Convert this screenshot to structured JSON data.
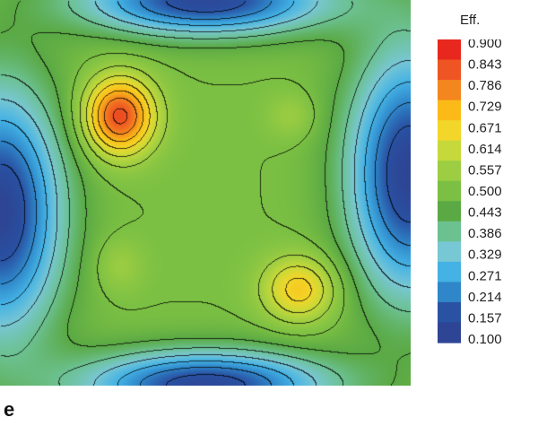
{
  "panel_label": "e",
  "chart_data": {
    "type": "heatmap",
    "title": "",
    "xlabel": "",
    "ylabel": "",
    "legend_title": "Eff.",
    "legend_position": "right",
    "contour_lines": true,
    "color_range": [
      0.1,
      0.9
    ],
    "colorbar_ticks": [
      "0.900",
      "0.843",
      "0.786",
      "0.729",
      "0.671",
      "0.614",
      "0.557",
      "0.500",
      "0.443",
      "0.386",
      "0.329",
      "0.271",
      "0.214",
      "0.157",
      "0.100"
    ],
    "colorbar_colors": [
      "#e8281e",
      "#ee5522",
      "#f4861f",
      "#fbba18",
      "#f2d629",
      "#c6d93a",
      "#9ccd42",
      "#7bc043",
      "#5aa944",
      "#6cc191",
      "#78c7d4",
      "#44b2e4",
      "#2f86c9",
      "#2952a3",
      "#2e4494"
    ],
    "peaks": [
      {
        "label": "upper-left maximum",
        "value": 0.86
      },
      {
        "label": "lower-right maximum",
        "value": 0.7
      },
      {
        "label": "upper-right local bump",
        "value": 0.56
      },
      {
        "label": "lower-left local bump",
        "value": 0.56
      },
      {
        "label": "plateau",
        "value": 0.5
      },
      {
        "label": "left/right edge minimum",
        "value": 0.1
      },
      {
        "label": "top/bottom edge minimum",
        "value": 0.12
      }
    ]
  }
}
